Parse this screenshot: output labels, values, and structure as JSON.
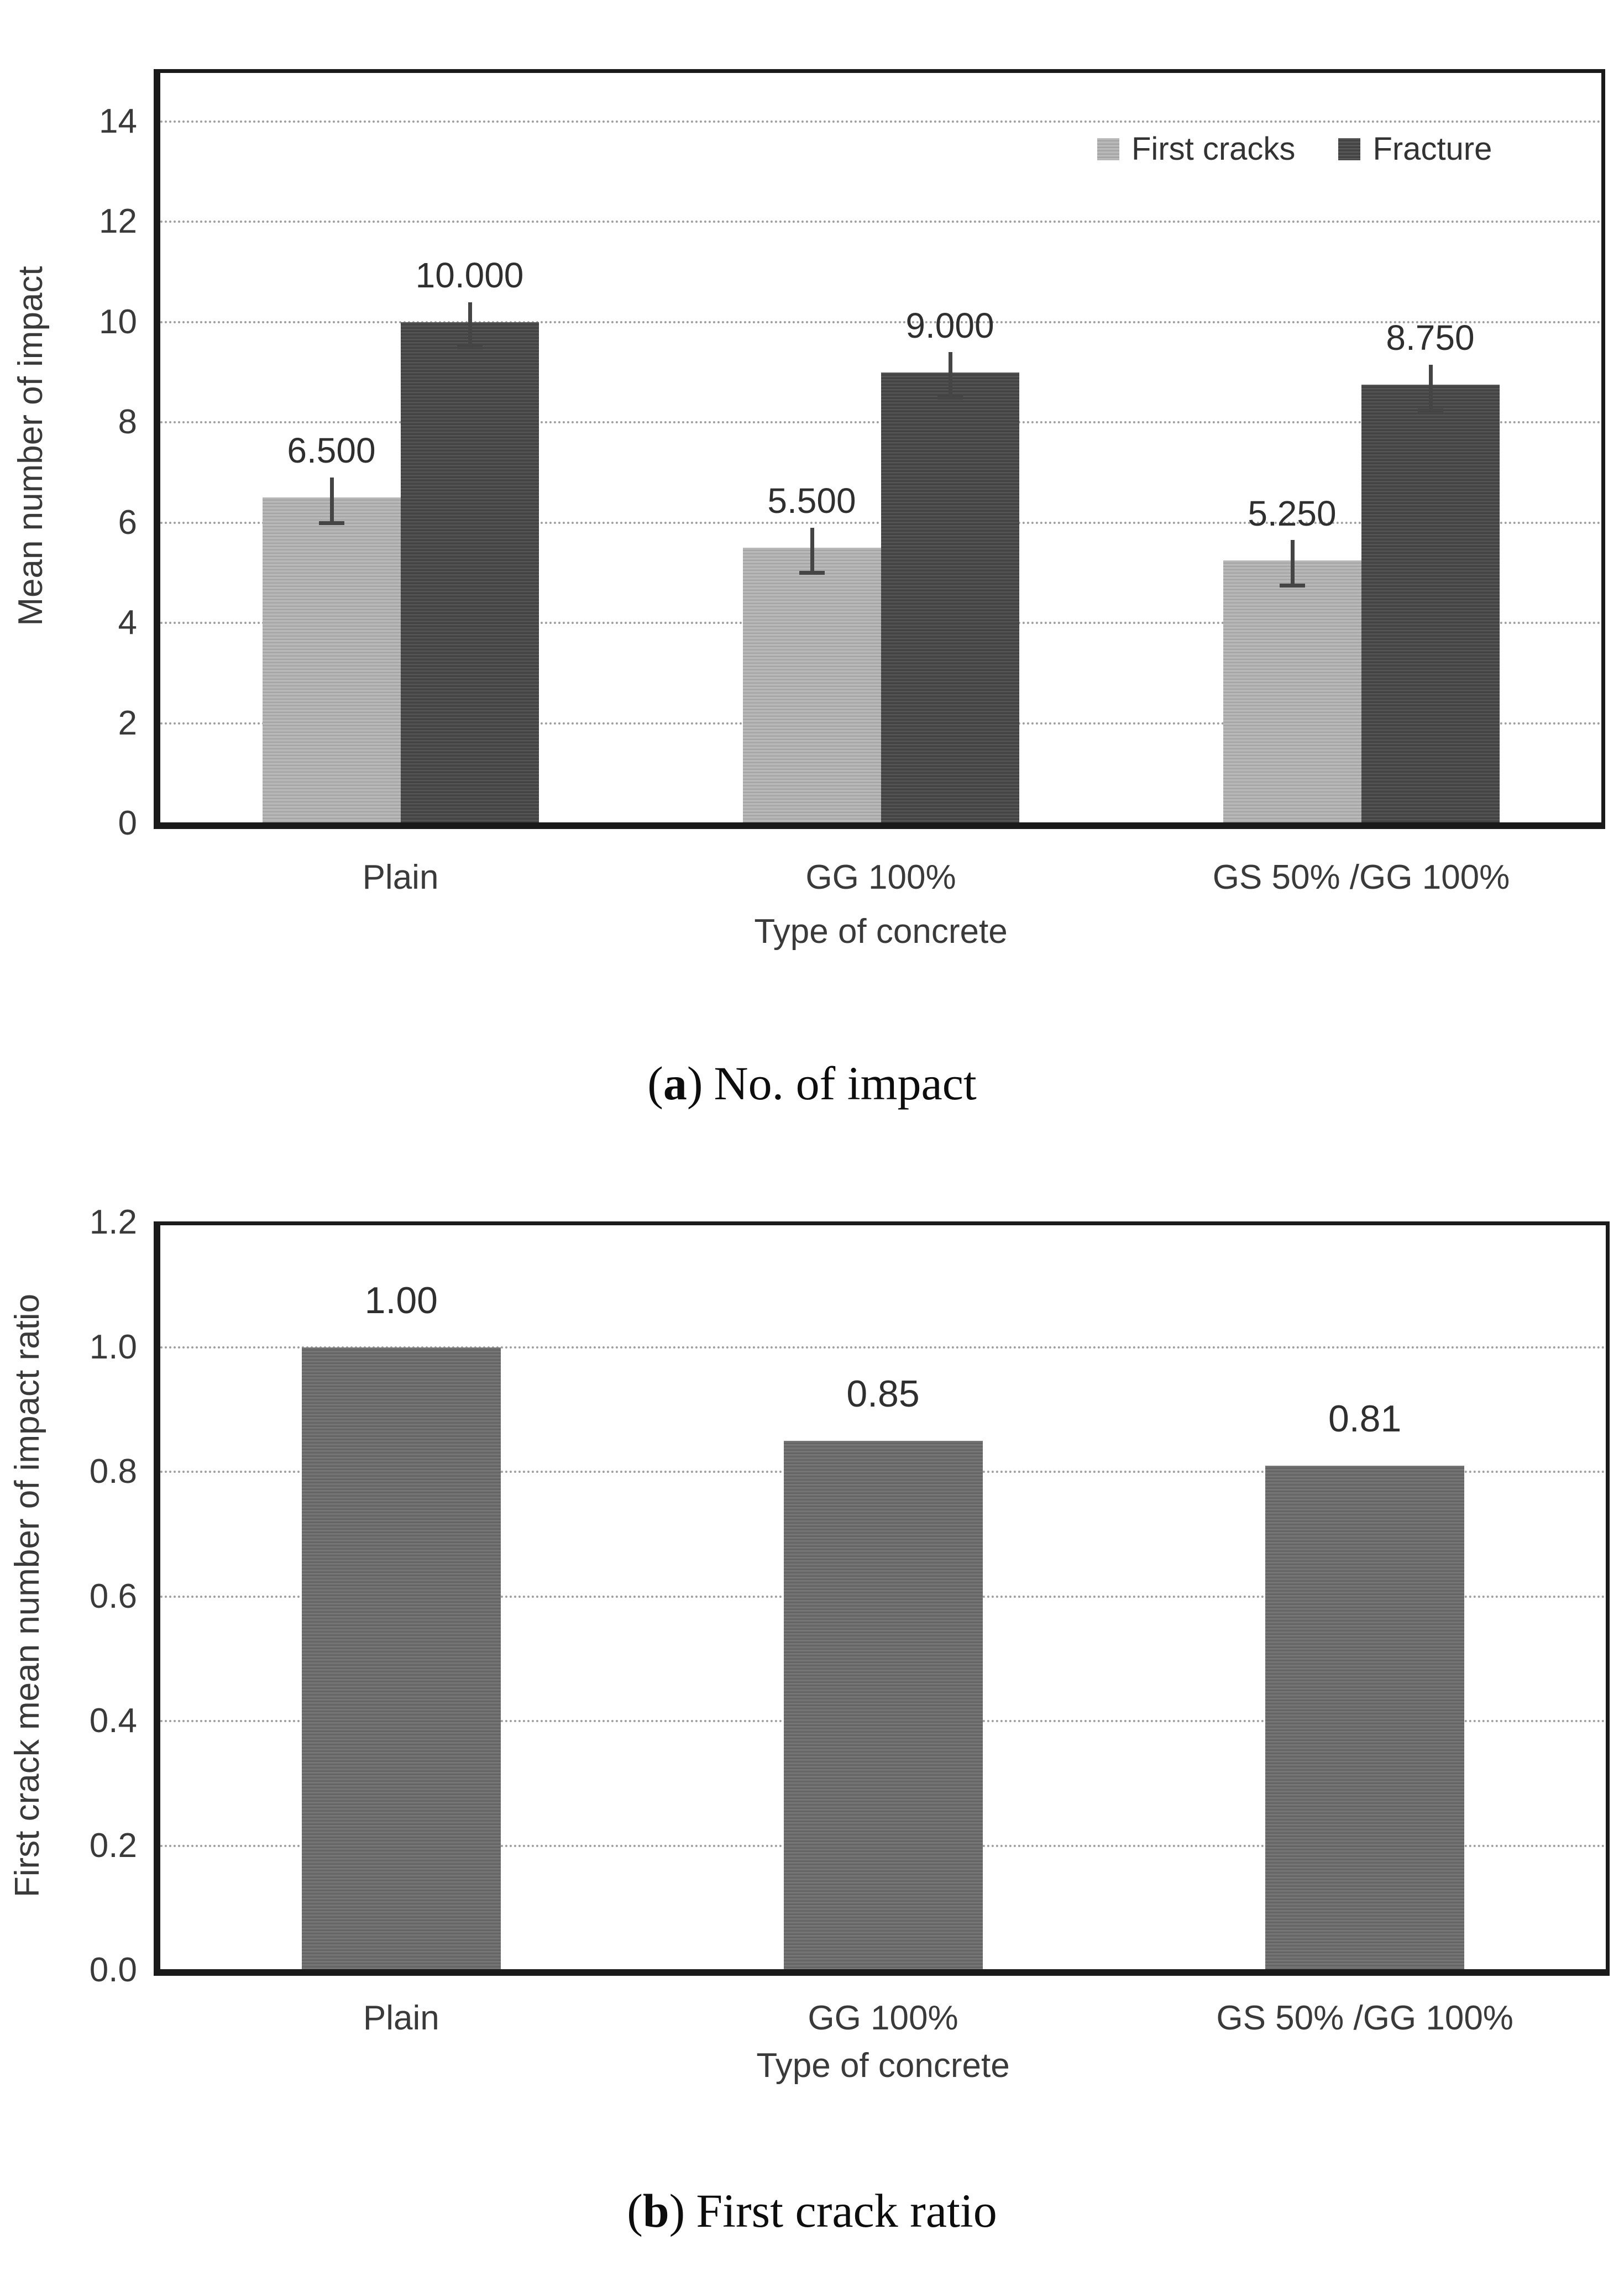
{
  "figure": {
    "captions": {
      "a": {
        "open": "(",
        "letter": "a",
        "close": ")",
        "text": "No. of impact"
      },
      "b": {
        "open": "(",
        "letter": "b",
        "close": ")",
        "text": "First crack ratio"
      }
    }
  },
  "chart_data": [
    {
      "type": "bar",
      "panel": "a",
      "categories": [
        "Plain",
        "GG 100%",
        "GS 50% /GG 100%"
      ],
      "series": [
        {
          "name": "First cracks",
          "color": "#b4b4b4",
          "values": [
            6.5,
            5.5,
            5.25
          ],
          "data_labels": [
            "6.500",
            "5.500",
            "5.250"
          ],
          "error_bar": 0.5
        },
        {
          "name": "Fracture",
          "color": "#484848",
          "values": [
            10.0,
            9.0,
            8.75
          ],
          "data_labels": [
            "10.000",
            "9.000",
            "8.750"
          ],
          "error_bar": 0.5
        }
      ],
      "xlabel": "Type of concrete",
      "ylabel": "Mean number of impact",
      "ylim": [
        0,
        14
      ],
      "ytick_labels": [
        "0",
        "2",
        "4",
        "6",
        "8",
        "10",
        "12",
        "14"
      ],
      "grid": true,
      "legend_position": "top-right"
    },
    {
      "type": "bar",
      "panel": "b",
      "categories": [
        "Plain",
        "GG 100%",
        "GS 50% /GG 100%"
      ],
      "series": [
        {
          "name": "First crack ratio",
          "color": "#6d6d6d",
          "values": [
            1.0,
            0.85,
            0.81
          ],
          "data_labels": [
            "1.00",
            "0.85",
            "0.81"
          ]
        }
      ],
      "xlabel": "Type of concrete",
      "ylabel": "First crack mean number of impact ratio",
      "ylim": [
        0,
        1.2
      ],
      "ytick_labels": [
        "0.0",
        "0.2",
        "0.4",
        "0.6",
        "0.8",
        "1.0",
        "1.2"
      ],
      "grid": true,
      "legend_position": "none"
    }
  ]
}
